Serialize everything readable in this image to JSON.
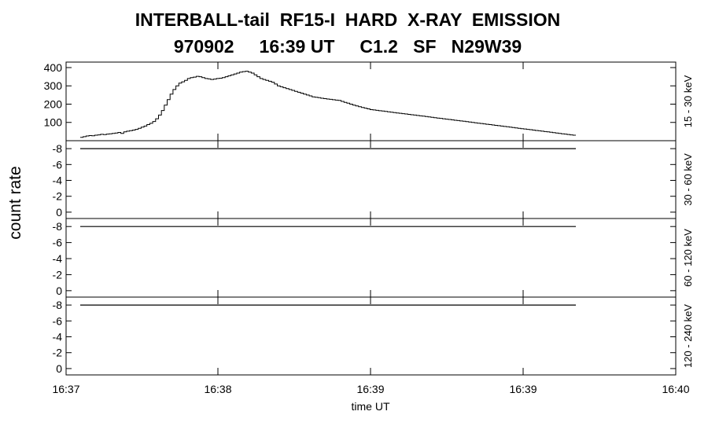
{
  "title_line1": "INTERBALL-tail  RF15-I  HARD  X-RAY  EMISSION",
  "title_line2": "970902     16:39 UT     C1.2   SF   N29W39",
  "chart_data": {
    "type": "line",
    "ylabel": "count rate",
    "xlabel": "time UT",
    "x_tick_labels": [
      "16:37",
      "16:38",
      "16:39",
      "16:39",
      "16:40"
    ],
    "panels": [
      {
        "name": "15 - 30 keV",
        "ylim": [
          0,
          430
        ],
        "y_ticks": [
          100,
          200,
          300,
          400
        ],
        "y_tick_labels": [
          "100",
          "200",
          "300",
          "400"
        ],
        "series": [
          {
            "values": [
              18,
              22,
              26,
              28,
              27,
              30,
              32,
              35,
              33,
              36,
              38,
              40,
              42,
              45,
              40,
              48,
              52,
              55,
              58,
              62,
              68,
              74,
              80,
              88,
              95,
              105,
              120,
              140,
              165,
              195,
              225,
              255,
              280,
              300,
              315,
              322,
              330,
              340,
              345,
              348,
              352,
              350,
              345,
              340,
              338,
              335,
              337,
              340,
              342,
              345,
              350,
              355,
              360,
              365,
              370,
              375,
              378,
              380,
              375,
              370,
              360,
              350,
              340,
              335,
              330,
              325,
              320,
              310,
              300,
              295,
              290,
              285,
              280,
              275,
              270,
              265,
              260,
              255,
              250,
              245,
              240,
              238,
              235,
              232,
              230,
              228,
              226,
              224,
              222,
              220,
              215,
              210,
              205,
              200,
              195,
              190,
              186,
              182,
              178,
              174,
              170,
              168,
              166,
              164,
              162,
              160,
              158,
              156,
              154,
              152,
              150,
              148,
              146,
              144,
              142,
              140,
              138,
              136,
              134,
              132,
              130,
              128,
              126,
              124,
              122,
              120,
              118,
              116,
              114,
              112,
              110,
              108,
              106,
              104,
              102,
              100,
              98,
              96,
              94,
              92,
              90,
              88,
              86,
              84,
              82,
              80,
              78,
              76,
              74,
              72,
              70,
              68,
              66,
              64,
              62,
              60,
              58,
              56,
              54,
              52,
              50,
              48,
              46,
              44,
              42,
              40,
              38,
              36,
              34,
              32,
              30
            ]
          }
        ]
      },
      {
        "name": "30 - 60 keV",
        "ylim": [
          0.8,
          -9
        ],
        "y_ticks": [
          -8,
          -6,
          -4,
          -2,
          0
        ],
        "y_tick_labels": [
          "-8",
          "-6",
          "-4",
          "-2",
          "0"
        ],
        "series": [
          {
            "values": [
              -8,
              -8
            ]
          }
        ]
      },
      {
        "name": "60 - 120 keV",
        "ylim": [
          0.8,
          -9
        ],
        "y_ticks": [
          -8,
          -6,
          -4,
          -2,
          0
        ],
        "y_tick_labels": [
          "-8",
          "-6",
          "-4",
          "-2",
          "0"
        ],
        "series": [
          {
            "values": [
              -8,
              -8
            ]
          }
        ]
      },
      {
        "name": "120 - 240 keV",
        "ylim": [
          0.8,
          -9
        ],
        "y_ticks": [
          -8,
          -6,
          -4,
          -2,
          0
        ],
        "y_tick_labels": [
          "-8",
          "-6",
          "-4",
          "-2",
          "0"
        ],
        "series": [
          {
            "values": [
              -8,
              -8
            ]
          }
        ]
      }
    ]
  }
}
